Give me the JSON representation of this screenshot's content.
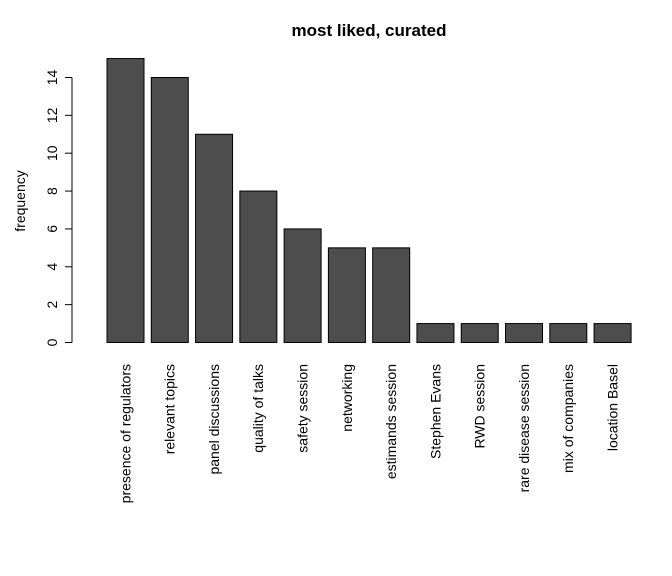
{
  "chart_data": {
    "type": "bar",
    "title": "most liked, curated",
    "xlabel": "",
    "ylabel": "frequency",
    "ylim": [
      0,
      15
    ],
    "y_ticks": [
      0,
      2,
      4,
      6,
      8,
      10,
      12,
      14
    ],
    "grid": false,
    "legend": "none",
    "bar_color": "#4d4d4d",
    "categories": [
      "presence of regulators",
      "relevant topics",
      "panel discussions",
      "quality of talks",
      "safety session",
      "networking",
      "estimands session",
      "Stephen Evans",
      "RWD session",
      "rare disease session",
      "mix of companies",
      "location Basel"
    ],
    "values": [
      15,
      14,
      11,
      8,
      6,
      5,
      5,
      1,
      1,
      1,
      1,
      1
    ]
  }
}
